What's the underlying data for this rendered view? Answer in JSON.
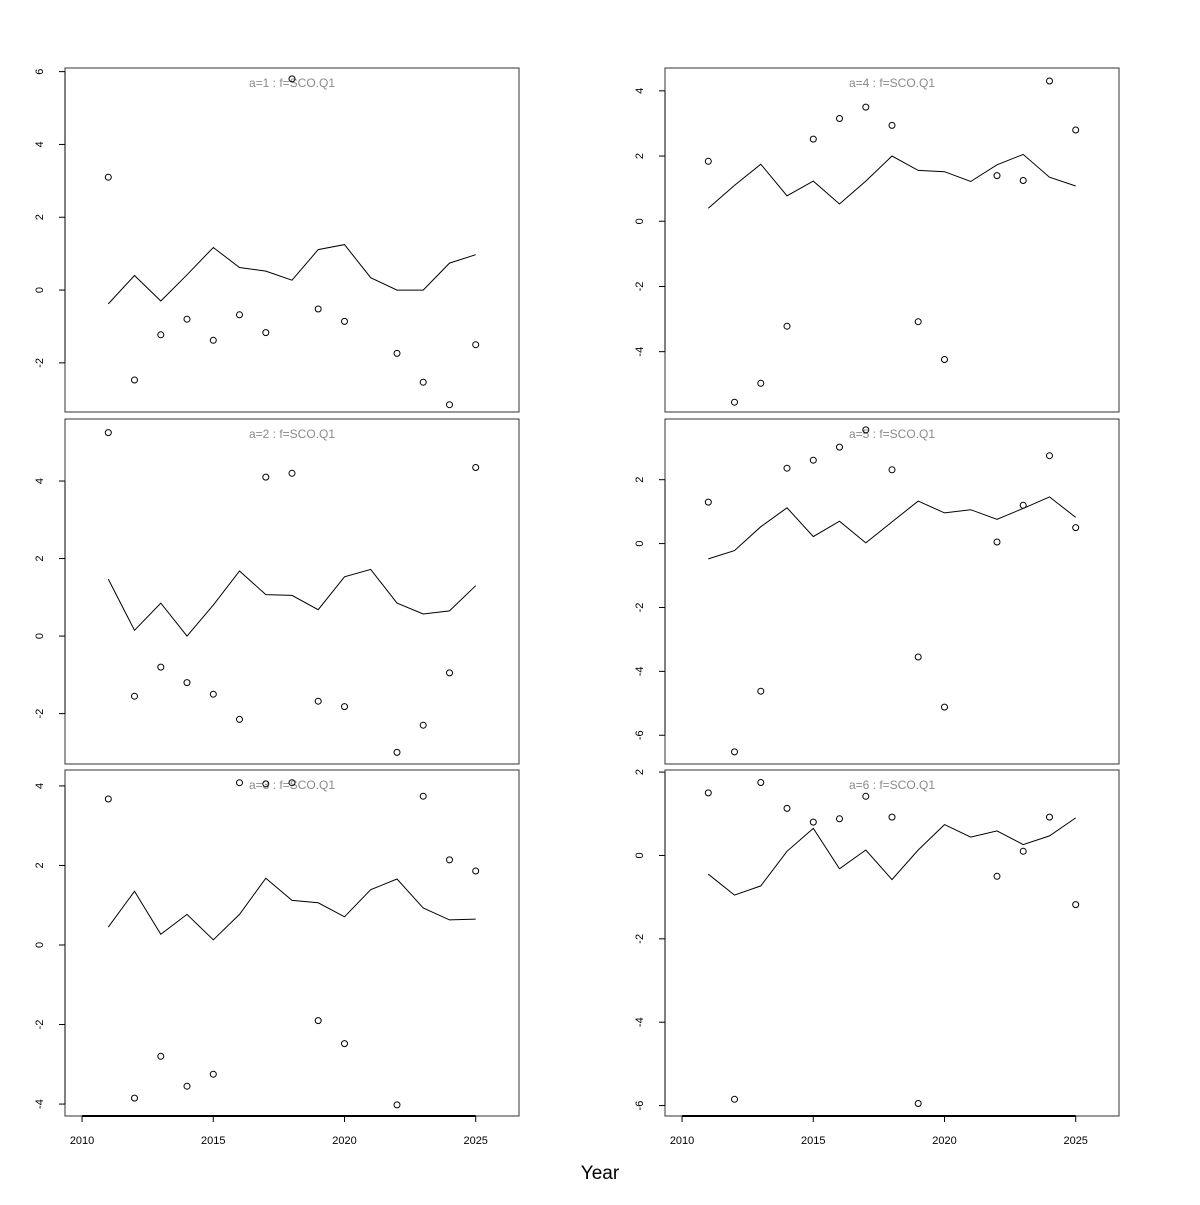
{
  "chart_data": {
    "type": "line",
    "xlabel": "Year",
    "x": [
      2011,
      2012,
      2013,
      2014,
      2015,
      2016,
      2017,
      2018,
      2019,
      2020,
      2021,
      2022,
      2023,
      2024,
      2025
    ],
    "x_ticks": [
      2010,
      2015,
      2020,
      2025
    ],
    "x_range": [
      2009.35,
      2026.65
    ],
    "line_color": "#000000",
    "point_color": "#000000",
    "title_color": "#8a8a8a",
    "panels": [
      {
        "id": "a1",
        "title": "a=1  :  f=SCO.Q1",
        "column": 0,
        "row": 0,
        "ylim": [
          -3.35,
          6.1
        ],
        "y_ticks": [
          -2,
          0,
          2,
          4,
          6
        ],
        "line": [
          -0.38,
          0.4,
          -0.3,
          0.42,
          1.17,
          0.62,
          0.52,
          0.27,
          1.11,
          1.25,
          0.34,
          0.0,
          0.0,
          0.74,
          0.97
        ],
        "points": [
          [
            2011,
            3.1
          ],
          [
            2012,
            -2.47
          ],
          [
            2013,
            -1.23
          ],
          [
            2014,
            -0.8
          ],
          [
            2015,
            -1.38
          ],
          [
            2016,
            -0.68
          ],
          [
            2017,
            -1.17
          ],
          [
            2018,
            5.8
          ],
          [
            2019,
            -0.52
          ],
          [
            2020,
            -0.86
          ],
          [
            2022,
            -1.74
          ],
          [
            2023,
            -2.53
          ],
          [
            2024,
            -3.15
          ],
          [
            2025,
            -1.5
          ]
        ]
      },
      {
        "id": "a2",
        "title": "a=2  :  f=SCO.Q1",
        "column": 0,
        "row": 1,
        "ylim": [
          -3.3,
          5.6
        ],
        "y_ticks": [
          -2,
          0,
          2,
          4
        ],
        "line": [
          1.47,
          0.15,
          0.85,
          0.0,
          0.8,
          1.68,
          1.07,
          1.05,
          0.68,
          1.53,
          1.72,
          0.85,
          0.57,
          0.65,
          1.3
        ],
        "points": [
          [
            2011,
            5.25
          ],
          [
            2012,
            -1.55
          ],
          [
            2013,
            -0.8
          ],
          [
            2014,
            -1.2
          ],
          [
            2015,
            -1.5
          ],
          [
            2016,
            -2.15
          ],
          [
            2017,
            4.1
          ],
          [
            2018,
            4.2
          ],
          [
            2019,
            -1.68
          ],
          [
            2020,
            -1.82
          ],
          [
            2022,
            -3.0
          ],
          [
            2023,
            -2.3
          ],
          [
            2024,
            -0.95
          ],
          [
            2025,
            4.35
          ]
        ]
      },
      {
        "id": "a3",
        "title": "a=3  :  f=SCO.Q1",
        "column": 0,
        "row": 2,
        "ylim": [
          -4.3,
          4.4
        ],
        "y_ticks": [
          -4,
          -2,
          0,
          2,
          4
        ],
        "line": [
          0.45,
          1.35,
          0.27,
          0.77,
          0.13,
          0.77,
          1.68,
          1.12,
          1.06,
          0.71,
          1.39,
          1.66,
          0.93,
          0.63,
          0.65
        ],
        "points": [
          [
            2011,
            3.67
          ],
          [
            2012,
            -3.85
          ],
          [
            2013,
            -2.8
          ],
          [
            2014,
            -3.55
          ],
          [
            2015,
            -3.25
          ],
          [
            2016,
            4.08
          ],
          [
            2017,
            4.05
          ],
          [
            2018,
            4.08
          ],
          [
            2019,
            -1.9
          ],
          [
            2020,
            -2.48
          ],
          [
            2022,
            -4.02
          ],
          [
            2023,
            3.74
          ],
          [
            2024,
            2.14
          ],
          [
            2025,
            1.86
          ]
        ]
      },
      {
        "id": "a4",
        "title": "a=4  :  f=SCO.Q1",
        "column": 1,
        "row": 0,
        "ylim": [
          -5.85,
          4.7
        ],
        "y_ticks": [
          -4,
          -2,
          0,
          2,
          4
        ],
        "line": [
          0.4,
          1.1,
          1.75,
          0.78,
          1.23,
          0.53,
          1.23,
          2.0,
          1.56,
          1.52,
          1.22,
          1.73,
          2.05,
          1.35,
          1.08
        ],
        "points": [
          [
            2011,
            1.84
          ],
          [
            2012,
            -5.55
          ],
          [
            2013,
            -4.97
          ],
          [
            2014,
            -3.22
          ],
          [
            2015,
            2.52
          ],
          [
            2016,
            3.15
          ],
          [
            2017,
            3.5
          ],
          [
            2018,
            2.94
          ],
          [
            2019,
            -3.08
          ],
          [
            2020,
            -4.24
          ],
          [
            2022,
            1.4
          ],
          [
            2023,
            1.25
          ],
          [
            2024,
            4.3
          ],
          [
            2025,
            2.8
          ]
        ]
      },
      {
        "id": "a5",
        "title": "a=5  :  f=SCO.Q1",
        "column": 1,
        "row": 1,
        "ylim": [
          -6.9,
          3.9
        ],
        "y_ticks": [
          -6,
          -4,
          -2,
          0,
          2
        ],
        "line": [
          -0.48,
          -0.22,
          0.53,
          1.12,
          0.22,
          0.7,
          0.02,
          0.68,
          1.33,
          0.96,
          1.06,
          0.76,
          1.1,
          1.46,
          0.82
        ],
        "points": [
          [
            2011,
            1.3
          ],
          [
            2012,
            -6.52
          ],
          [
            2013,
            -4.62
          ],
          [
            2014,
            2.36
          ],
          [
            2015,
            2.61
          ],
          [
            2016,
            3.02
          ],
          [
            2017,
            3.56
          ],
          [
            2018,
            2.31
          ],
          [
            2019,
            -3.55
          ],
          [
            2020,
            -5.12
          ],
          [
            2022,
            0.05
          ],
          [
            2023,
            1.2
          ],
          [
            2024,
            2.75
          ],
          [
            2025,
            0.5
          ]
        ]
      },
      {
        "id": "a6",
        "title": "a=6  :  f=SCO.Q1",
        "column": 1,
        "row": 2,
        "ylim": [
          -6.25,
          2.05
        ],
        "y_ticks": [
          -6,
          -4,
          -2,
          0,
          2
        ],
        "line": [
          -0.45,
          -0.95,
          -0.73,
          0.1,
          0.65,
          -0.32,
          0.13,
          -0.58,
          0.13,
          0.74,
          0.44,
          0.59,
          0.26,
          0.47,
          0.9
        ],
        "points": [
          [
            2011,
            1.5
          ],
          [
            2012,
            -5.85
          ],
          [
            2013,
            1.75
          ],
          [
            2014,
            1.13
          ],
          [
            2015,
            0.8
          ],
          [
            2016,
            0.88
          ],
          [
            2017,
            1.42
          ],
          [
            2018,
            0.92
          ],
          [
            2019,
            -5.95
          ],
          [
            2022,
            -0.5
          ],
          [
            2023,
            0.1
          ],
          [
            2024,
            0.92
          ],
          [
            2025,
            -1.18
          ]
        ]
      }
    ]
  }
}
